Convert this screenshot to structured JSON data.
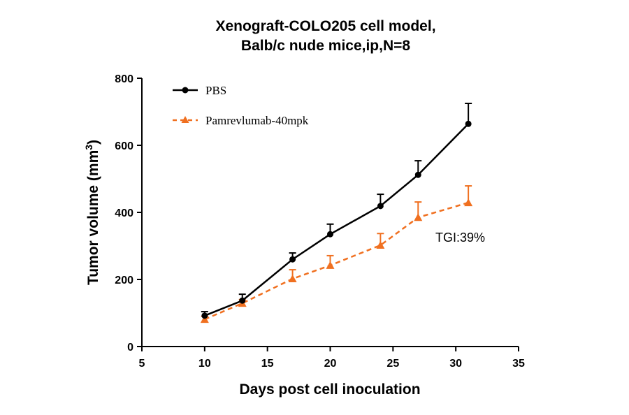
{
  "chart_data": {
    "type": "line",
    "title_lines": [
      "Xenograft-COLO205 cell model,",
      "Balb/c nude mice,ip,N=8"
    ],
    "xlabel": "Days post cell inoculation",
    "ylabel": "Tumor volume (mm",
    "ylabel_superscript": "3",
    "ylabel_close": ")",
    "xlim": [
      5,
      35
    ],
    "ylim": [
      0,
      800
    ],
    "xticks": [
      5,
      10,
      15,
      20,
      25,
      30,
      35
    ],
    "yticks": [
      0,
      200,
      400,
      600,
      800
    ],
    "grid": false,
    "legend_position": "top-left",
    "x": [
      10,
      13,
      17,
      20,
      24,
      27,
      31
    ],
    "series": [
      {
        "name": "PBS",
        "color": "#000000",
        "marker": "circle",
        "line": "solid",
        "values": [
          92,
          137,
          260,
          335,
          419,
          512,
          664
        ],
        "error_upper": [
          104,
          156,
          279,
          365,
          454,
          554,
          725
        ]
      },
      {
        "name": "Pamrevlumab-40mpk",
        "color": "#f07020",
        "marker": "triangle",
        "line": "dashed",
        "values": [
          81,
          129,
          202,
          242,
          302,
          385,
          429
        ],
        "error_upper": [
          90,
          140,
          229,
          271,
          337,
          431,
          479
        ]
      }
    ],
    "annotations": [
      {
        "text": "TGI:39%"
      }
    ]
  }
}
